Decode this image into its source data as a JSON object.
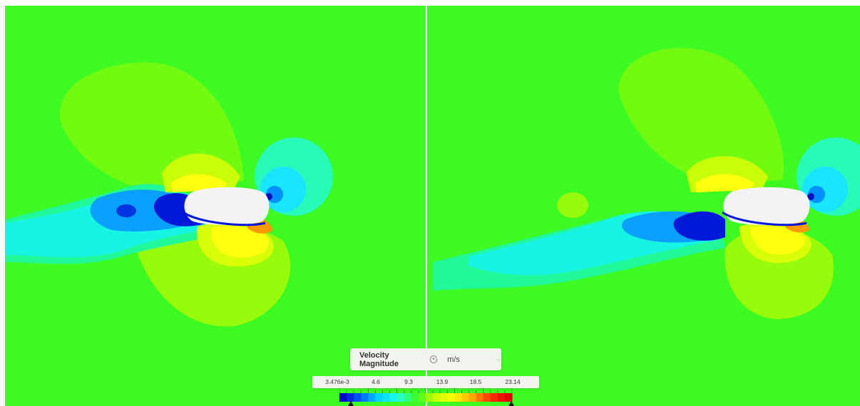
{
  "legend": {
    "title": "Velocity Magnitude",
    "info_icon": "info-icon",
    "unit": "m/s",
    "unit_dropdown_icon": "chevron-down-icon",
    "tick_labels": [
      "3.476e-3",
      "4.6",
      "9.3",
      "13.9",
      "18.5",
      "23.14"
    ],
    "min": 0.003476,
    "max": 23.14,
    "colormap": [
      "#0000c8",
      "#0066ff",
      "#00d8ff",
      "#22ffdd",
      "#3dfb22",
      "#c8ff00",
      "#ffff00",
      "#ffaa00",
      "#ff3300",
      "#e00000"
    ]
  },
  "colors": {
    "background_field": "#3dfb22",
    "wake_low": "#0018d8",
    "wake_mid": "#00e8ff",
    "high_speed": "#ffff10",
    "body": "#f3f3f3"
  }
}
